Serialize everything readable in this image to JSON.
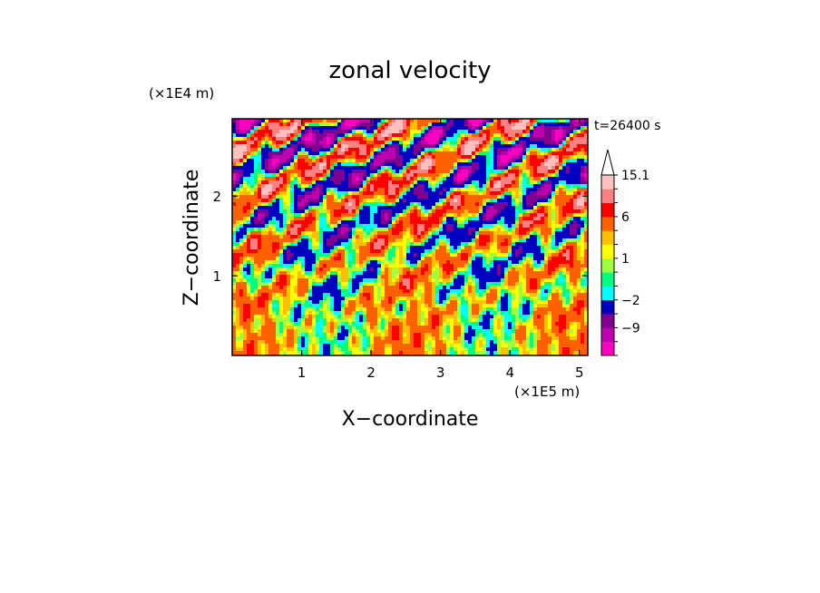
{
  "chart_data": {
    "type": "heatmap",
    "title": "zonal velocity",
    "xlabel": "X−coordinate",
    "ylabel": "Z−coordinate",
    "x_scale_label": "(×1E5 m)",
    "y_scale_label": "(×1E4 m)",
    "time_label": "t=26400 s",
    "xlim": [
      0,
      5.12
    ],
    "ylim": [
      0,
      2.97
    ],
    "x_ticks": [
      1,
      2,
      3,
      4,
      5
    ],
    "y_ticks": [
      1,
      2
    ],
    "colorbar": {
      "levels": [
        -15.1,
        -12,
        -9,
        -6,
        -2,
        -1,
        0,
        1,
        2,
        3,
        6,
        9,
        12,
        15.1
      ],
      "labeled_levels": [
        -9,
        -2,
        1,
        6,
        15.1
      ],
      "colors": [
        "#ff00c0",
        "#c000b0",
        "#800090",
        "#0000c0",
        "#00ffff",
        "#00ff80",
        "#a0ff40",
        "#ffff00",
        "#ffc000",
        "#ff6000",
        "#ff0000",
        "#ff8080",
        "#ffc0c0"
      ],
      "extend": "max"
    }
  }
}
